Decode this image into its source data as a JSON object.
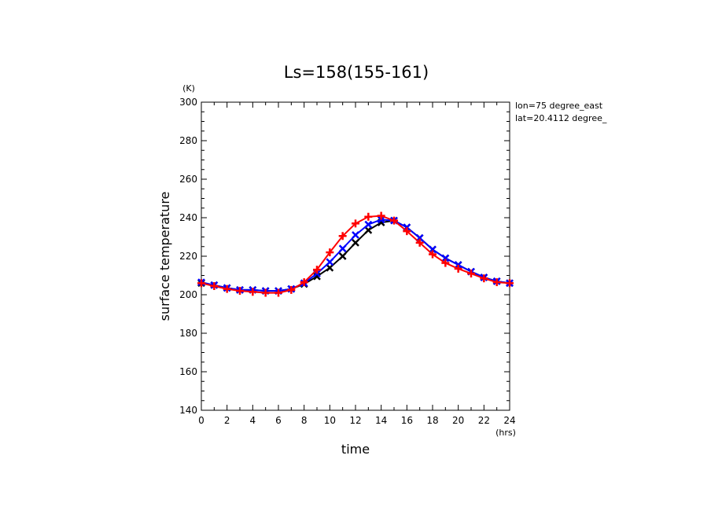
{
  "chart_data": {
    "type": "line",
    "title": "Ls=158(155-161)",
    "xlabel": "time",
    "ylabel": "surface temperature",
    "x_unit": "(hrs)",
    "y_unit": "(K)",
    "xlim": [
      0,
      24
    ],
    "ylim": [
      140,
      300
    ],
    "x_ticks": [
      0,
      2,
      4,
      6,
      8,
      10,
      12,
      14,
      16,
      18,
      20,
      22,
      24
    ],
    "y_ticks": [
      140,
      160,
      180,
      200,
      220,
      240,
      260,
      280,
      300
    ],
    "grid": false,
    "annotations": [
      "lon=75 degree_east",
      "lat=20.4112 degree_"
    ],
    "x": [
      0,
      1,
      2,
      3,
      4,
      5,
      6,
      7,
      8,
      9,
      10,
      11,
      12,
      13,
      14,
      15,
      16,
      17,
      18,
      19,
      20,
      21,
      22,
      23,
      24
    ],
    "series": [
      {
        "color": "#000000",
        "marker": "x",
        "values": [
          206,
          205,
          203.5,
          202.5,
          202.5,
          202,
          202,
          203,
          205.5,
          209.5,
          214,
          220,
          227,
          233.5,
          237.5,
          238.5,
          235,
          229.5,
          223.5,
          219,
          215.5,
          212,
          209,
          207,
          206
        ]
      },
      {
        "color": "#0000ff",
        "marker": "x",
        "values": [
          206.5,
          205,
          203.5,
          202.5,
          202.5,
          202,
          202,
          203,
          206,
          211,
          217,
          224,
          231,
          236.5,
          239,
          238.5,
          235,
          229.5,
          223.5,
          219,
          215.5,
          212,
          209,
          207,
          206
        ]
      },
      {
        "color": "#ff0000",
        "marker": "+",
        "values": [
          206,
          204.5,
          203,
          202,
          201.5,
          201,
          201,
          202.5,
          206.5,
          213,
          222,
          230.5,
          237,
          240.5,
          241,
          238.5,
          233,
          227,
          221,
          216.5,
          213.5,
          211,
          208.5,
          206.5,
          206
        ]
      }
    ]
  }
}
